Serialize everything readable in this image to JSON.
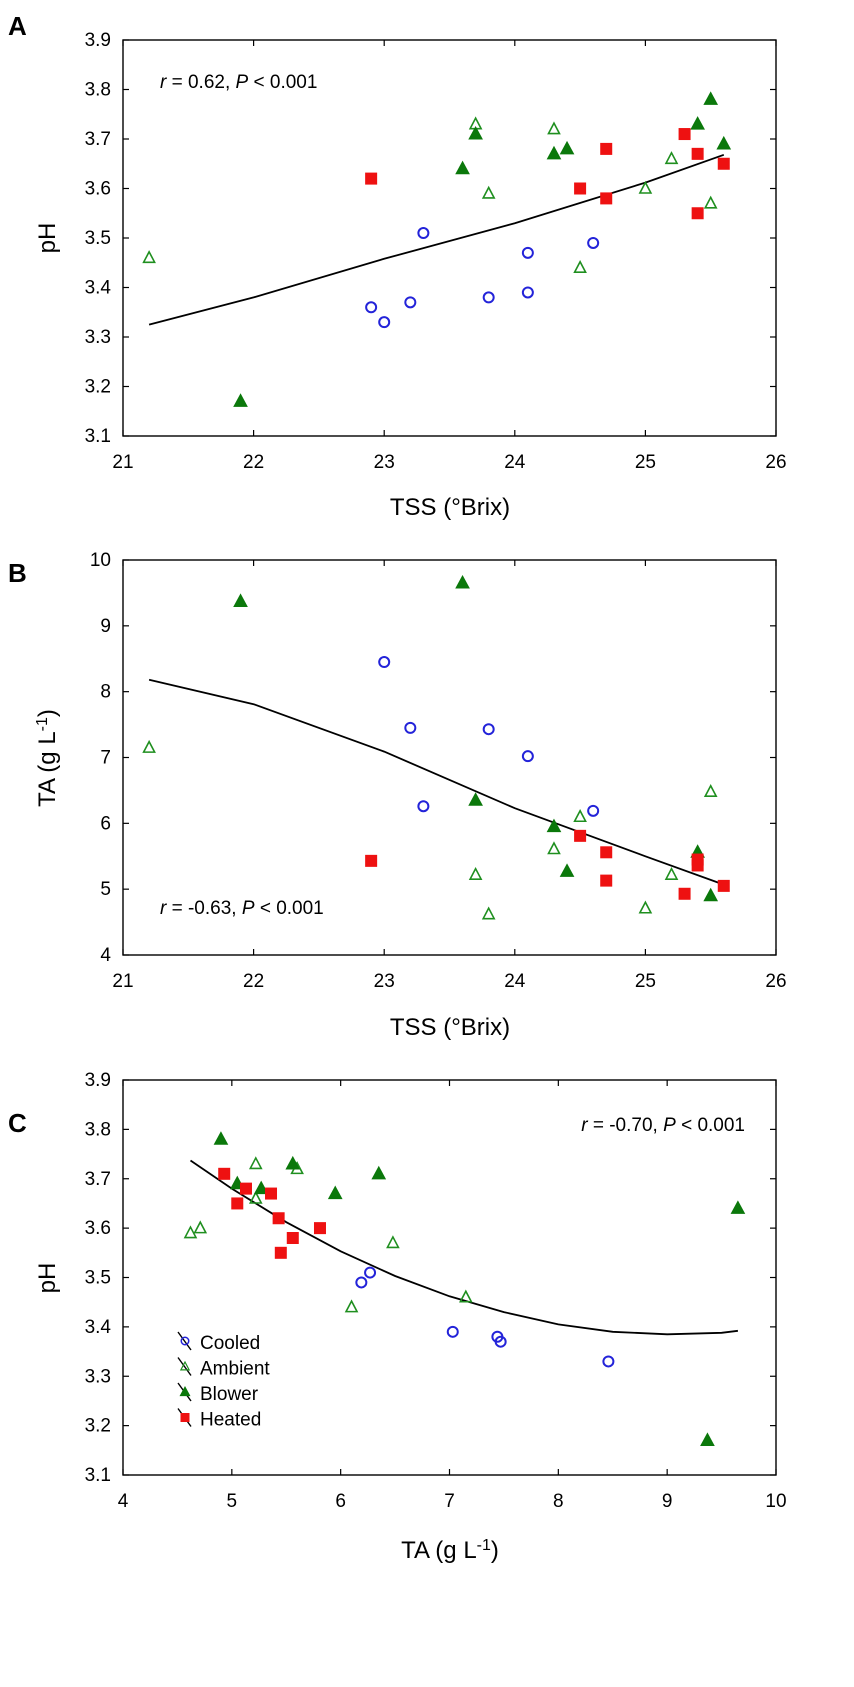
{
  "colors": {
    "cooled": "#2323d9",
    "ambient": "#1f8f1f",
    "blower": "#0b780b",
    "heated": "#ee1111",
    "axis": "#000000",
    "fit": "#000000"
  },
  "legend": [
    "Cooled",
    "Ambient",
    "Blower",
    "Heated"
  ],
  "chart_data": [
    {
      "type": "scatter",
      "panel": "A",
      "xlabel": "TSS (°Brix)",
      "ylabel": "pH",
      "annotation": {
        "r_label": "r",
        "r_value": " = 0.62, ",
        "p_label": "P",
        "p_value": " < 0.001"
      },
      "xlim": [
        21,
        26
      ],
      "ylim": [
        3.1,
        3.9
      ],
      "xticks": [
        21,
        22,
        23,
        24,
        25,
        26
      ],
      "yticks": [
        3.1,
        3.2,
        3.3,
        3.4,
        3.5,
        3.6,
        3.7,
        3.8,
        3.9
      ],
      "ydecimals": 1,
      "series": [
        {
          "name": "Cooled",
          "marker": "circle-open",
          "points": [
            [
              22.9,
              3.36
            ],
            [
              23.0,
              3.33
            ],
            [
              23.2,
              3.37
            ],
            [
              23.3,
              3.51
            ],
            [
              23.8,
              3.38
            ],
            [
              24.1,
              3.47
            ],
            [
              24.1,
              3.39
            ],
            [
              24.6,
              3.49
            ]
          ]
        },
        {
          "name": "Ambient",
          "marker": "triangle-open",
          "points": [
            [
              21.2,
              3.46
            ],
            [
              23.7,
              3.73
            ],
            [
              23.8,
              3.59
            ],
            [
              24.3,
              3.72
            ],
            [
              24.5,
              3.44
            ],
            [
              25.0,
              3.6
            ],
            [
              25.2,
              3.66
            ],
            [
              25.5,
              3.57
            ]
          ]
        },
        {
          "name": "Blower",
          "marker": "triangle-filled",
          "points": [
            [
              21.9,
              3.17
            ],
            [
              23.6,
              3.64
            ],
            [
              23.7,
              3.71
            ],
            [
              24.3,
              3.67
            ],
            [
              24.4,
              3.68
            ],
            [
              25.4,
              3.73
            ],
            [
              25.5,
              3.78
            ],
            [
              25.6,
              3.69
            ]
          ]
        },
        {
          "name": "Heated",
          "marker": "square-filled",
          "points": [
            [
              22.9,
              3.62
            ],
            [
              24.5,
              3.6
            ],
            [
              24.7,
              3.68
            ],
            [
              24.7,
              3.58
            ],
            [
              25.3,
              3.71
            ],
            [
              25.4,
              3.67
            ],
            [
              25.4,
              3.55
            ],
            [
              25.6,
              3.65
            ]
          ]
        }
      ],
      "fit": [
        [
          21.2,
          3.325
        ],
        [
          22.0,
          3.38
        ],
        [
          23.0,
          3.458
        ],
        [
          24.0,
          3.53
        ],
        [
          25.0,
          3.612
        ],
        [
          25.6,
          3.668
        ]
      ]
    },
    {
      "type": "scatter",
      "panel": "B",
      "xlabel": "TSS (°Brix)",
      "ylabel": "TA (g L",
      "ylabel_sup": "-1",
      "ylabel_end": ")",
      "annotation": {
        "r_label": "r",
        "r_value": " = -0.63, ",
        "p_label": "P",
        "p_value": " < 0.001"
      },
      "xlim": [
        21,
        26
      ],
      "ylim": [
        4,
        10
      ],
      "xticks": [
        21,
        22,
        23,
        24,
        25,
        26
      ],
      "yticks": [
        4,
        5,
        6,
        7,
        8,
        9,
        10
      ],
      "ydecimals": 0,
      "series": [
        {
          "name": "Cooled",
          "marker": "circle-open",
          "points": [
            [
              23.0,
              8.45
            ],
            [
              23.2,
              7.45
            ],
            [
              23.3,
              6.26
            ],
            [
              23.8,
              7.43
            ],
            [
              24.1,
              7.02
            ],
            [
              24.6,
              6.19
            ]
          ]
        },
        {
          "name": "Ambient",
          "marker": "triangle-open",
          "points": [
            [
              21.2,
              7.15
            ],
            [
              23.7,
              5.22
            ],
            [
              23.8,
              4.62
            ],
            [
              24.3,
              5.61
            ],
            [
              24.5,
              6.1
            ],
            [
              25.0,
              4.71
            ],
            [
              25.2,
              5.22
            ],
            [
              25.5,
              6.48
            ]
          ]
        },
        {
          "name": "Blower",
          "marker": "triangle-filled",
          "points": [
            [
              21.9,
              9.37
            ],
            [
              23.6,
              9.65
            ],
            [
              23.7,
              6.35
            ],
            [
              24.3,
              5.95
            ],
            [
              24.4,
              5.27
            ],
            [
              25.4,
              5.56
            ],
            [
              25.5,
              4.9
            ]
          ]
        },
        {
          "name": "Heated",
          "marker": "square-filled",
          "points": [
            [
              22.9,
              5.43
            ],
            [
              24.5,
              5.81
            ],
            [
              24.7,
              5.56
            ],
            [
              24.7,
              5.13
            ],
            [
              25.3,
              4.93
            ],
            [
              25.4,
              5.45
            ],
            [
              25.4,
              5.36
            ],
            [
              25.6,
              5.05
            ]
          ]
        }
      ],
      "fit": [
        [
          21.2,
          8.18
        ],
        [
          22.0,
          7.81
        ],
        [
          23.0,
          7.09
        ],
        [
          24.0,
          6.23
        ],
        [
          25.0,
          5.5
        ],
        [
          25.6,
          5.07
        ]
      ]
    },
    {
      "type": "scatter",
      "panel": "C",
      "xlabel": "TA (g L",
      "xlabel_sup": "-1",
      "xlabel_end": ")",
      "ylabel": "pH",
      "annotation": {
        "r_label": "r",
        "r_value": " = -0.70, ",
        "p_label": "P",
        "p_value": " < 0.001"
      },
      "xlim": [
        4,
        10
      ],
      "ylim": [
        3.1,
        3.9
      ],
      "xticks": [
        4,
        5,
        6,
        7,
        8,
        9,
        10
      ],
      "yticks": [
        3.1,
        3.2,
        3.3,
        3.4,
        3.5,
        3.6,
        3.7,
        3.8,
        3.9
      ],
      "ydecimals": 1,
      "series": [
        {
          "name": "Cooled",
          "marker": "circle-open",
          "points": [
            [
              6.19,
              3.49
            ],
            [
              6.27,
              3.51
            ],
            [
              7.03,
              3.39
            ],
            [
              7.44,
              3.38
            ],
            [
              7.47,
              3.37
            ],
            [
              8.46,
              3.33
            ]
          ]
        },
        {
          "name": "Ambient",
          "marker": "triangle-open",
          "points": [
            [
              4.62,
              3.59
            ],
            [
              4.71,
              3.6
            ],
            [
              5.22,
              3.73
            ],
            [
              5.22,
              3.66
            ],
            [
              5.6,
              3.72
            ],
            [
              6.1,
              3.44
            ],
            [
              6.48,
              3.57
            ],
            [
              7.15,
              3.46
            ]
          ]
        },
        {
          "name": "Blower",
          "marker": "triangle-filled",
          "points": [
            [
              4.9,
              3.78
            ],
            [
              5.05,
              3.69
            ],
            [
              5.27,
              3.68
            ],
            [
              5.56,
              3.73
            ],
            [
              5.95,
              3.67
            ],
            [
              6.35,
              3.71
            ],
            [
              9.37,
              3.17
            ],
            [
              9.65,
              3.64
            ]
          ]
        },
        {
          "name": "Heated",
          "marker": "square-filled",
          "points": [
            [
              4.93,
              3.71
            ],
            [
              5.05,
              3.65
            ],
            [
              5.13,
              3.68
            ],
            [
              5.36,
              3.67
            ],
            [
              5.43,
              3.62
            ],
            [
              5.45,
              3.55
            ],
            [
              5.56,
              3.58
            ],
            [
              5.81,
              3.6
            ]
          ]
        }
      ],
      "fit": [
        [
          4.62,
          3.737
        ],
        [
          5.0,
          3.68
        ],
        [
          5.5,
          3.612
        ],
        [
          6.0,
          3.553
        ],
        [
          6.5,
          3.503
        ],
        [
          7.0,
          3.462
        ],
        [
          7.5,
          3.43
        ],
        [
          8.0,
          3.405
        ],
        [
          8.5,
          3.39
        ],
        [
          9.0,
          3.385
        ],
        [
          9.5,
          3.388
        ],
        [
          9.65,
          3.392
        ]
      ]
    }
  ]
}
